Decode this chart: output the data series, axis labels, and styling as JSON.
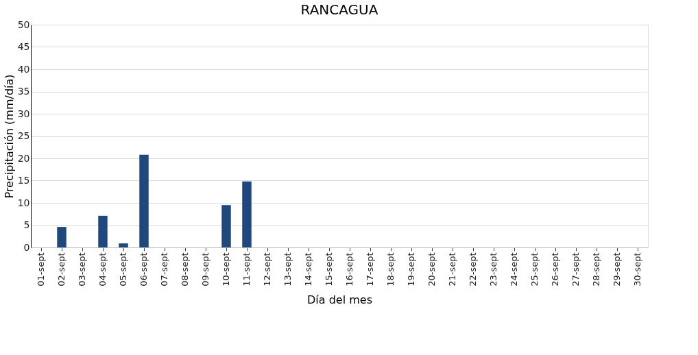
{
  "chart_data": {
    "type": "bar",
    "title": "RANCAGUA",
    "xlabel": "Día del mes",
    "ylabel": "Precipitación (mm/día)",
    "categories": [
      "01-sept",
      "02-sept",
      "03-sept",
      "04-sept",
      "05-sept",
      "06-sept",
      "07-sept",
      "08-sept",
      "09-sept",
      "10-sept",
      "11-sept",
      "12-sept",
      "13-sept",
      "14-sept",
      "15-sept",
      "16-sept",
      "17-sept",
      "18-sept",
      "19-sept",
      "20-sept",
      "21-sept",
      "22-sept",
      "23-sept",
      "24-sept",
      "25-sept",
      "26-sept",
      "27-sept",
      "28-sept",
      "29-sept",
      "30-sept"
    ],
    "values": [
      0,
      4.6,
      0,
      7.1,
      0.9,
      20.8,
      0,
      0,
      0,
      9.5,
      14.8,
      0,
      0,
      0,
      0,
      0,
      0,
      0,
      0,
      0,
      0,
      0,
      0,
      0,
      0,
      0,
      0,
      0,
      0,
      0
    ],
    "color": "#1f497d",
    "ylim": [
      0,
      50
    ],
    "yticks": [
      0,
      5,
      10,
      15,
      20,
      25,
      30,
      35,
      40,
      45,
      50
    ],
    "grid": "y"
  }
}
